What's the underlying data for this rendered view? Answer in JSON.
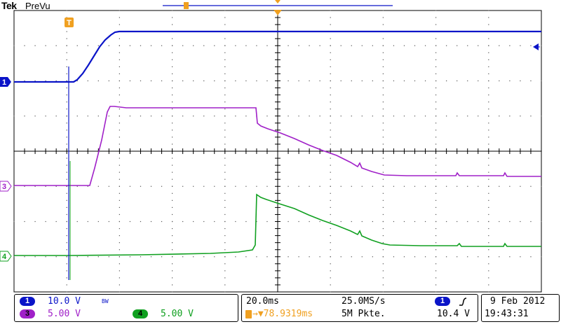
{
  "header": {
    "brand": "Tek",
    "mode": "PreVu"
  },
  "markers": {
    "ch1": "1",
    "ch3": "3",
    "ch4": "4",
    "trigger": "T"
  },
  "colors": {
    "ch1": "#0a14c8",
    "ch3": "#a020c8",
    "ch4": "#10a020",
    "grid": "#000000",
    "trigger": "#f0a020"
  },
  "channels": {
    "ch1": {
      "num": "1",
      "scale": "10.0 V",
      "bw": "BW"
    },
    "ch3": {
      "num": "3",
      "scale": "5.00 V"
    },
    "ch4": {
      "num": "4",
      "scale": "5.00 V"
    }
  },
  "timebase": {
    "scale": "20.0ms",
    "sample_rate": "25.0MS/s",
    "trigger_pos": "→▼78.9319ms",
    "record": "5M Pkte."
  },
  "trigger": {
    "source": "1",
    "slope_icon": "rising-edge",
    "level": "10.4 V"
  },
  "datetime": {
    "date": "9 Feb 2012",
    "time": "19:43:31"
  }
}
